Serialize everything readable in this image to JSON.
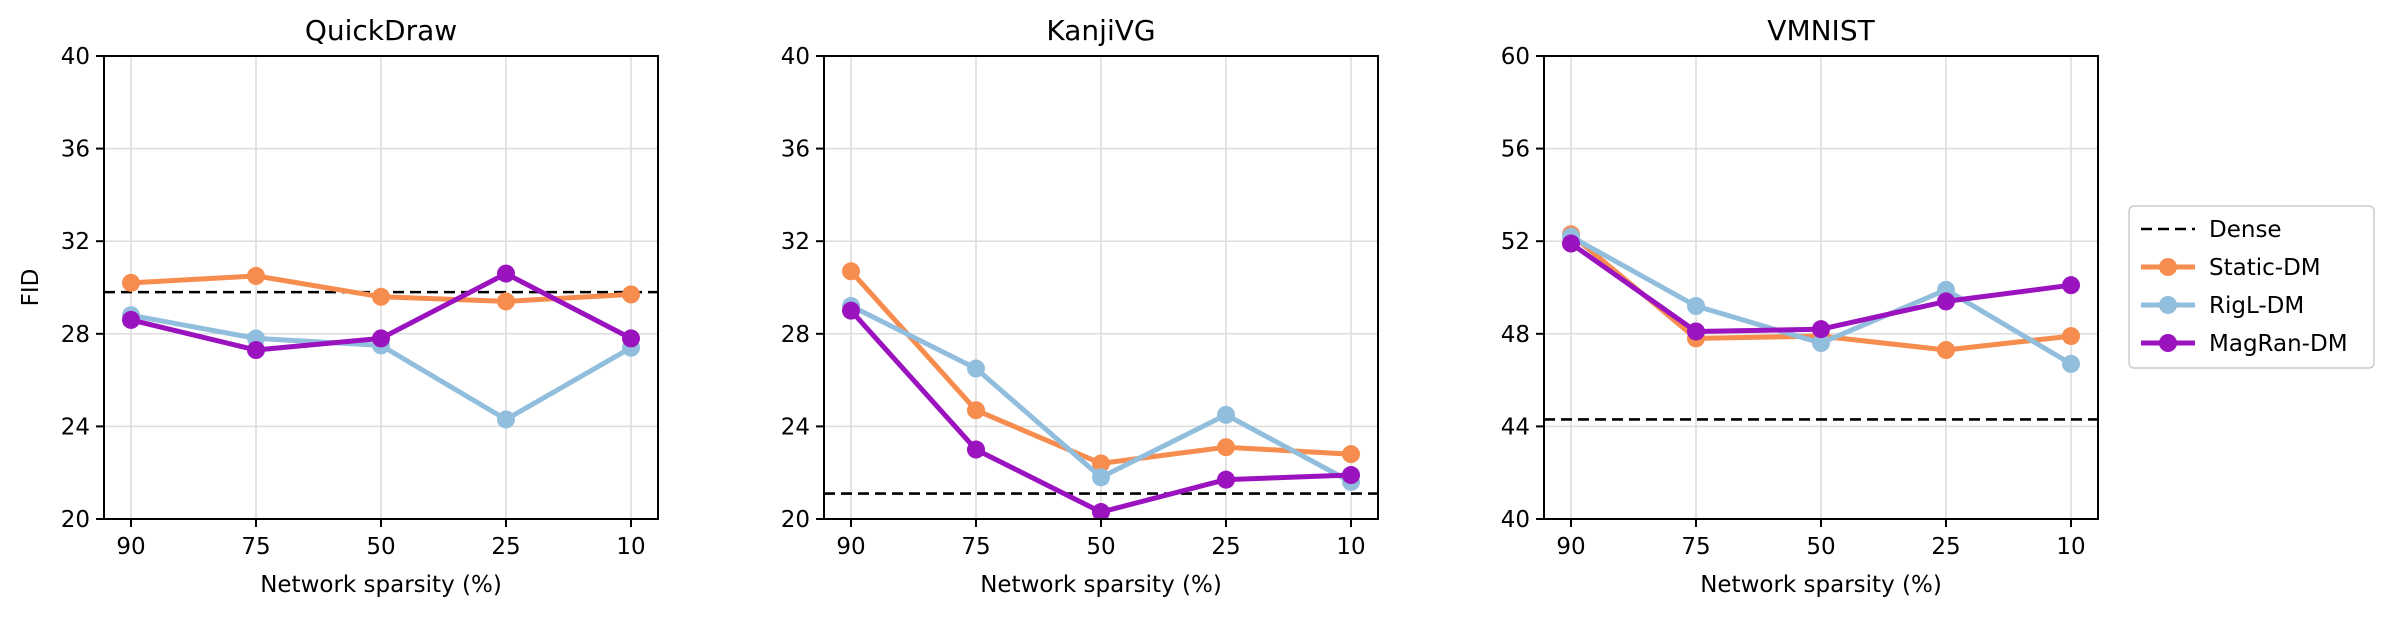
{
  "chart_data": [
    {
      "type": "line",
      "title": "QuickDraw",
      "xlabel": "Network sparsity (%)",
      "ylabel": "FID",
      "categories": [
        "90",
        "75",
        "50",
        "25",
        "10"
      ],
      "ylim": [
        20,
        40
      ],
      "yticks": [
        "20",
        "24",
        "28",
        "32",
        "36",
        "40"
      ],
      "dense": 29.8,
      "series": [
        {
          "name": "Static-DM",
          "values": [
            30.2,
            30.5,
            29.6,
            29.4,
            29.7
          ]
        },
        {
          "name": "RigL-DM",
          "values": [
            28.8,
            27.8,
            27.5,
            24.3,
            27.4
          ]
        },
        {
          "name": "MagRan-DM",
          "values": [
            28.6,
            27.3,
            27.8,
            30.6,
            27.8
          ]
        }
      ]
    },
    {
      "type": "line",
      "title": "KanjiVG",
      "xlabel": "Network sparsity (%)",
      "ylabel": "",
      "categories": [
        "90",
        "75",
        "50",
        "25",
        "10"
      ],
      "ylim": [
        20,
        40
      ],
      "yticks": [
        "20",
        "24",
        "28",
        "32",
        "36",
        "40"
      ],
      "dense": 21.1,
      "series": [
        {
          "name": "Static-DM",
          "values": [
            30.7,
            24.7,
            22.4,
            23.1,
            22.8
          ]
        },
        {
          "name": "RigL-DM",
          "values": [
            29.2,
            26.5,
            21.8,
            24.5,
            21.6
          ]
        },
        {
          "name": "MagRan-DM",
          "values": [
            29.0,
            23.0,
            20.3,
            21.7,
            21.9
          ]
        }
      ]
    },
    {
      "type": "line",
      "title": "VMNIST",
      "xlabel": "Network sparsity (%)",
      "ylabel": "",
      "categories": [
        "90",
        "75",
        "50",
        "25",
        "10"
      ],
      "ylim": [
        40,
        60
      ],
      "yticks": [
        "40",
        "44",
        "48",
        "52",
        "56",
        "60"
      ],
      "dense": 44.3,
      "series": [
        {
          "name": "Static-DM",
          "values": [
            52.3,
            47.8,
            47.9,
            47.3,
            47.9
          ]
        },
        {
          "name": "RigL-DM",
          "values": [
            52.2,
            49.2,
            47.6,
            49.9,
            46.7
          ]
        },
        {
          "name": "MagRan-DM",
          "values": [
            51.9,
            48.1,
            48.2,
            49.4,
            50.1
          ]
        }
      ]
    }
  ],
  "legend": {
    "position": "right",
    "entries": [
      {
        "label": "Dense",
        "style": "dashed",
        "color": "#000000"
      },
      {
        "label": "Static-DM",
        "style": "line-marker",
        "color": "#F78C4F"
      },
      {
        "label": "RigL-DM",
        "style": "line-marker",
        "color": "#92BEDD"
      },
      {
        "label": "MagRan-DM",
        "style": "line-marker",
        "color": "#9B12BF"
      }
    ]
  },
  "colors": {
    "Static-DM": "#F78C4F",
    "RigL-DM": "#92BEDD",
    "MagRan-DM": "#9B12BF",
    "Dense": "#000000",
    "grid": "#DCDCDC"
  }
}
